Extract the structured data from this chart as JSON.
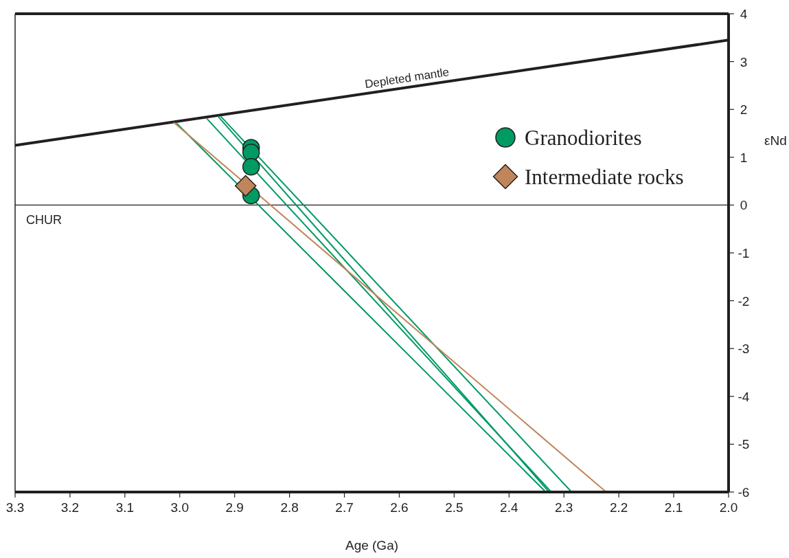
{
  "chart_data": {
    "type": "line",
    "xlabel": "Age (Ga)",
    "ylabel": "εNd",
    "xlim": [
      3.3,
      2.0
    ],
    "xticks": [
      3.3,
      3.2,
      3.1,
      {
        "value": 3.0,
        "label": "3.0"
      },
      2.9,
      2.8,
      2.7,
      2.6,
      2.5,
      2.4,
      2.3,
      2.2,
      2.1,
      {
        "value": 2.0,
        "label": "2.0"
      }
    ],
    "ylim": [
      -6,
      4
    ],
    "yticks": [
      -6,
      -5,
      -4,
      -3,
      -2,
      -1,
      0,
      1,
      2,
      3,
      4
    ],
    "grid": false,
    "legend": "top right",
    "line_style": "solid",
    "ref_lines": [
      {
        "axis": "y",
        "value": 0,
        "label": "CHUR",
        "color": "#231f20"
      }
    ],
    "series": [
      {
        "name": "Depleted mantle",
        "color": "#231f20",
        "x": [
          3.3,
          2.0
        ],
        "values": [
          1.25,
          3.45
        ]
      },
      {
        "color": "#009a63",
        "x": [
          3.005,
          2.333
        ],
        "values": [
          1.7,
          -6
        ]
      },
      {
        "color": "#009a63",
        "x": [
          2.95,
          2.323
        ],
        "values": [
          1.8,
          -6
        ]
      },
      {
        "color": "#009a63",
        "x": [
          2.93,
          2.327
        ],
        "values": [
          1.85,
          -6
        ]
      },
      {
        "color": "#009a63",
        "x": [
          2.925,
          2.286
        ],
        "values": [
          1.85,
          -6
        ]
      },
      {
        "color": "#c0855a",
        "x": [
          3.01,
          2.223
        ],
        "values": [
          1.72,
          -6
        ]
      },
      {
        "name": "Granodiorites",
        "type": "scatter",
        "marker": "circle",
        "color": "#009a63",
        "x": [
          2.87,
          2.87,
          2.87,
          2.87
        ],
        "values": [
          1.2,
          1.1,
          0.8,
          0.2
        ]
      },
      {
        "name": "Intermediate rocks",
        "type": "scatter",
        "marker": "diamond",
        "color": "#c0855a",
        "x": [
          2.88
        ],
        "values": [
          0.4
        ]
      }
    ]
  }
}
